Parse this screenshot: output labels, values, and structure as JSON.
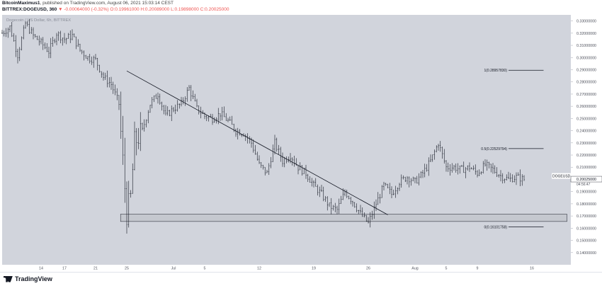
{
  "header": {
    "author": "BitcoinMaximus1",
    "published": ", published on TradingView.com, August 06, 2021 15:03:14 CEST",
    "symbol": "BITTREX:DOGEUSD, 360",
    "change": "▼ -0.00064000 (-0.32%)",
    "open": "O:0.19961000",
    "high": "H:0.20089000",
    "low": "L:0.19898000",
    "close": "C:0.20025000"
  },
  "watermark": "Dogecoin / US Dollar, 6h, BITTREX",
  "logo": "TradingView",
  "colors": {
    "chart_bg": "#d1d4dc",
    "candles": "#131722",
    "zone_fill": "#c3c6cc",
    "accent_down": "#ef5350"
  },
  "chart_data": {
    "type": "candlestick",
    "symbol": "DOGEUSD",
    "price_axis_ticks": [
      0.33,
      0.32,
      0.31,
      0.3,
      0.29,
      0.28,
      0.27,
      0.26,
      0.25,
      0.24,
      0.23,
      0.22,
      0.21,
      0.2,
      0.19,
      0.18,
      0.17,
      0.16,
      0.15,
      0.14
    ],
    "price_axis_labels": [
      "0.33000000",
      "0.32000000",
      "0.31000000",
      "0.30000000",
      "0.29000000",
      "0.28000000",
      "0.27000000",
      "0.26000000",
      "0.25000000",
      "0.24000000",
      "0.23000000",
      "0.22000000",
      "0.21000000",
      "0.20000000",
      "0.19000000",
      "0.18000000",
      "0.17000000",
      "0.16000000",
      "0.15000000",
      "0.14000000"
    ],
    "time_axis_labels": [
      "14",
      "17",
      "21",
      "25",
      "Jul",
      "5",
      "12",
      "19",
      "26",
      "Aug",
      "5",
      "9",
      "16"
    ],
    "time_axis_days": [
      14,
      17,
      21,
      25,
      31,
      35,
      42,
      49,
      56,
      62,
      66,
      70,
      77
    ],
    "ylim": [
      0.13,
      0.335
    ],
    "xlim": [
      9,
      82
    ],
    "last_price": 0.20025,
    "last_price_label": "DOGEUSD",
    "last_price_value": "0.20025000",
    "countdown": "04:56:47",
    "support_zone": [
      0.1655,
      0.1715
    ],
    "fibonacci": [
      {
        "ratio": "1(0.28957830)",
        "price": 0.2895783
      },
      {
        "ratio": "0.5(0.22529794)",
        "price": 0.22529794
      },
      {
        "ratio": "0(0.16101758)",
        "price": 0.16101758
      }
    ],
    "trendline": [
      [
        25,
        0.289
      ],
      [
        58.5,
        0.171
      ]
    ],
    "price_path": [
      [
        9,
        0.32
      ],
      [
        10,
        0.325
      ],
      [
        11,
        0.302
      ],
      [
        12,
        0.328
      ],
      [
        13,
        0.318
      ],
      [
        14,
        0.312
      ],
      [
        15,
        0.305
      ],
      [
        16,
        0.32
      ],
      [
        17,
        0.315
      ],
      [
        18,
        0.318
      ],
      [
        19,
        0.306
      ],
      [
        20,
        0.3
      ],
      [
        21,
        0.298
      ],
      [
        22,
        0.284
      ],
      [
        23,
        0.278
      ],
      [
        24,
        0.262
      ],
      [
        24.5,
        0.215
      ],
      [
        25,
        0.172
      ],
      [
        25.5,
        0.185
      ],
      [
        26,
        0.23
      ],
      [
        27,
        0.24
      ],
      [
        28,
        0.262
      ],
      [
        29,
        0.27
      ],
      [
        30,
        0.252
      ],
      [
        31,
        0.258
      ],
      [
        32,
        0.262
      ],
      [
        33,
        0.275
      ],
      [
        34,
        0.258
      ],
      [
        35,
        0.252
      ],
      [
        36,
        0.25
      ],
      [
        37,
        0.254
      ],
      [
        38,
        0.248
      ],
      [
        39,
        0.24
      ],
      [
        40,
        0.238
      ],
      [
        41,
        0.23
      ],
      [
        42,
        0.212
      ],
      [
        43,
        0.205
      ],
      [
        44,
        0.23
      ],
      [
        45,
        0.215
      ],
      [
        46,
        0.22
      ],
      [
        47,
        0.21
      ],
      [
        48,
        0.205
      ],
      [
        49,
        0.195
      ],
      [
        50,
        0.188
      ],
      [
        51,
        0.178
      ],
      [
        52,
        0.175
      ],
      [
        53,
        0.19
      ],
      [
        54,
        0.182
      ],
      [
        55,
        0.172
      ],
      [
        56,
        0.164
      ],
      [
        57,
        0.18
      ],
      [
        58,
        0.195
      ],
      [
        59,
        0.188
      ],
      [
        60,
        0.198
      ],
      [
        61,
        0.202
      ],
      [
        62,
        0.198
      ],
      [
        63,
        0.205
      ],
      [
        64,
        0.215
      ],
      [
        65,
        0.23
      ],
      [
        66,
        0.21
      ],
      [
        67,
        0.21
      ],
      [
        68,
        0.208
      ],
      [
        69,
        0.21
      ],
      [
        70,
        0.205
      ],
      [
        71,
        0.212
      ],
      [
        72,
        0.208
      ],
      [
        73,
        0.203
      ],
      [
        74,
        0.2
      ],
      [
        75,
        0.202
      ],
      [
        76,
        0.2
      ]
    ]
  }
}
